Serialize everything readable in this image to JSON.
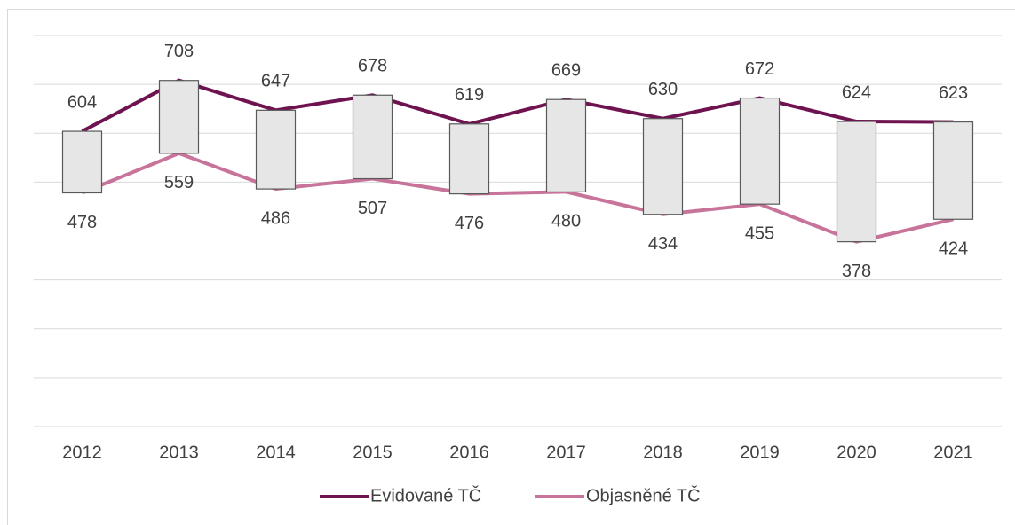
{
  "chart_data": {
    "type": "line",
    "categories": [
      "2012",
      "2013",
      "2014",
      "2015",
      "2016",
      "2017",
      "2018",
      "2019",
      "2020",
      "2021"
    ],
    "series": [
      {
        "name": "Evidované TČ",
        "color": "#6e1250",
        "values": [
          604,
          708,
          647,
          678,
          619,
          669,
          630,
          672,
          624,
          623
        ]
      },
      {
        "name": "Objasněné TČ",
        "color": "#c8739a",
        "values": [
          478,
          559,
          486,
          507,
          476,
          480,
          434,
          455,
          378,
          424
        ]
      }
    ],
    "ylim": [
      0,
      800
    ],
    "yticks": [
      0,
      100,
      200,
      300,
      400,
      500,
      600,
      700,
      800
    ],
    "grid": true,
    "up_down_bars": true,
    "legend": "bottom"
  }
}
